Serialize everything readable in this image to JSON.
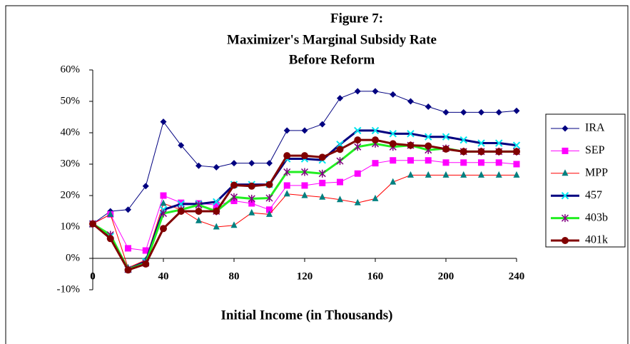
{
  "chart_data": {
    "type": "line",
    "title": [
      "Figure 7:",
      "Maximizer's Marginal Subsidy Rate",
      "Before Reform"
    ],
    "x_label": "Initial Income (in Thousands)",
    "x": [
      0,
      10,
      20,
      30,
      40,
      50,
      60,
      70,
      80,
      90,
      100,
      110,
      120,
      130,
      140,
      150,
      160,
      170,
      180,
      190,
      200,
      210,
      220,
      230,
      240
    ],
    "xlim": [
      0,
      240
    ],
    "xticks": [
      0,
      40,
      80,
      120,
      160,
      200,
      240
    ],
    "ylim": [
      -10,
      60
    ],
    "yticks": [
      {
        "value": -10,
        "label": "-10%"
      },
      {
        "value": 0,
        "label": "0%"
      },
      {
        "value": 10,
        "label": "10%"
      },
      {
        "value": 20,
        "label": "20%"
      },
      {
        "value": 30,
        "label": "30%"
      },
      {
        "value": 40,
        "label": "40%"
      },
      {
        "value": 50,
        "label": "50%"
      },
      {
        "value": 60,
        "label": "60%"
      }
    ],
    "legend": "right",
    "series": [
      {
        "name": "IRA",
        "color": "#000080",
        "marker": "diamond",
        "marker_color": "#000080",
        "values": [
          11,
          15,
          15.5,
          23,
          43.5,
          36,
          29.5,
          29,
          30.3,
          30.3,
          30.3,
          40.7,
          40.7,
          42.7,
          51,
          53.2,
          53.2,
          52.2,
          50,
          48.3,
          46.5,
          46.5,
          46.5,
          46.5,
          47
        ]
      },
      {
        "name": "SEP",
        "color": "#ff00ff",
        "marker": "square",
        "marker_color": "#ff00ff",
        "values": [
          11,
          14,
          3.2,
          2.5,
          20,
          17.7,
          17.5,
          17,
          18.3,
          17.5,
          15.5,
          23.2,
          23.2,
          24,
          24.3,
          27,
          30.3,
          31.2,
          31.2,
          31.2,
          30.5,
          30.5,
          30.5,
          30.5,
          30
        ]
      },
      {
        "name": "MPP",
        "color": "#ff0000",
        "marker": "triangle",
        "marker_color": "#008080",
        "values": [
          11,
          14,
          -3,
          -0.5,
          17.5,
          15.5,
          12,
          10,
          10.5,
          14.5,
          14,
          20.5,
          20,
          19.5,
          18.7,
          17.7,
          19,
          24.3,
          26.5,
          26.5,
          26.5,
          26.5,
          26.5,
          26.5,
          26.5
        ]
      },
      {
        "name": "457",
        "color": "#000080",
        "marker": "x",
        "marker_color": "#00e5ee",
        "values": [
          11,
          7,
          -3.5,
          -1,
          15.5,
          17.3,
          17.3,
          18,
          23.5,
          23.5,
          23.5,
          31.7,
          31.7,
          31.3,
          36.3,
          40.7,
          40.7,
          39.7,
          39.7,
          38.7,
          38.7,
          37.7,
          36.7,
          36.7,
          36
        ]
      },
      {
        "name": "403b",
        "color": "#22ee22",
        "marker": "asterisk",
        "marker_color": "#800080",
        "values": [
          11,
          7.5,
          -3.5,
          -1.5,
          14.3,
          15.5,
          17,
          15,
          19.5,
          19,
          19.2,
          27.5,
          27.5,
          27,
          31,
          35.5,
          36.5,
          35.5,
          36,
          34.5,
          35,
          34,
          34,
          34,
          34
        ]
      },
      {
        "name": "401k",
        "color": "#800000",
        "marker": "circle",
        "marker_color": "#800000",
        "values": [
          11,
          6.3,
          -3.7,
          -1.8,
          9.5,
          15,
          15,
          15,
          23.3,
          23,
          23.5,
          32.7,
          32.7,
          32.2,
          34.7,
          37.7,
          37.7,
          36.5,
          36,
          35.8,
          34.8,
          34,
          34,
          34,
          34
        ]
      }
    ]
  }
}
